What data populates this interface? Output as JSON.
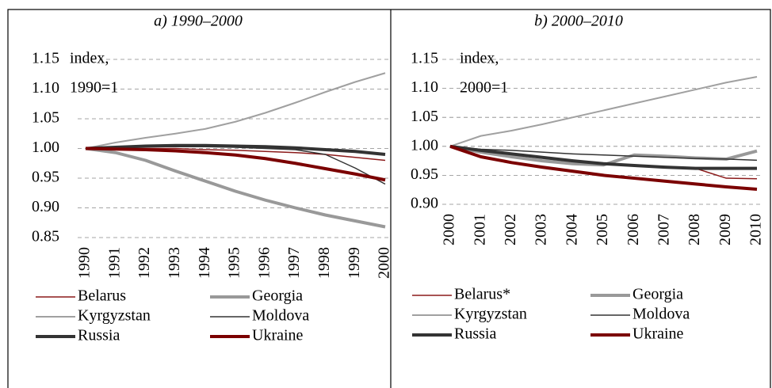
{
  "chart_data": [
    {
      "type": "line",
      "title": "a) 1990–2000",
      "annotation": [
        "index,",
        "1990=1"
      ],
      "categories": [
        "1990",
        "1991",
        "1992",
        "1993",
        "1994",
        "1995",
        "1996",
        "1997",
        "1998",
        "1999",
        "2000"
      ],
      "ylim": [
        0.85,
        1.15
      ],
      "yticks": [
        {
          "value": 0.85,
          "label": "0.85"
        },
        {
          "value": 0.9,
          "label": "0.90"
        },
        {
          "value": 0.95,
          "label": "0.95"
        },
        {
          "value": 1,
          "label": "1.00"
        },
        {
          "value": 1.05,
          "label": "1.05"
        },
        {
          "value": 1.1,
          "label": "1.10"
        },
        {
          "value": 1.15,
          "label": "1.15"
        }
      ],
      "grid": true,
      "series": [
        {
          "name": "Belarus",
          "color": "#8b1a1a",
          "linewidth": 1.5,
          "values": [
            1,
            1,
            1,
            1,
            0.998,
            0.997,
            0.995,
            0.993,
            0.99,
            0.985,
            0.98
          ]
        },
        {
          "name": "Georgia",
          "color": "#999999",
          "linewidth": 4,
          "values": [
            1,
            0.993,
            0.98,
            0.962,
            0.945,
            0.928,
            0.913,
            0.9,
            0.888,
            0.878,
            0.868
          ]
        },
        {
          "name": "Kyrgyzstan",
          "color": "#a0a0a0",
          "linewidth": 2,
          "values": [
            1,
            1.01,
            1.018,
            1.025,
            1.033,
            1.045,
            1.06,
            1.077,
            1.095,
            1.112,
            1.127
          ]
        },
        {
          "name": "Moldova",
          "color": "#333333",
          "linewidth": 1.5,
          "values": [
            1,
            1.002,
            1.003,
            1.003,
            1.003,
            1.002,
            1,
            0.998,
            0.99,
            0.967,
            0.94
          ]
        },
        {
          "name": "Russia",
          "color": "#333333",
          "linewidth": 4,
          "values": [
            1,
            1.002,
            1.004,
            1.005,
            1.005,
            1.004,
            1.003,
            1.001,
            0.998,
            0.995,
            0.99
          ]
        },
        {
          "name": "Ukraine",
          "color": "#7b0000",
          "linewidth": 4,
          "values": [
            1,
            0.999,
            0.998,
            0.996,
            0.993,
            0.989,
            0.983,
            0.975,
            0.966,
            0.957,
            0.947
          ]
        }
      ]
    },
    {
      "type": "line",
      "title": "b) 2000–2010",
      "annotation": [
        "index,",
        "2000=1"
      ],
      "categories": [
        "2000",
        "2001",
        "2002",
        "2003",
        "2004",
        "2005",
        "2006",
        "2007",
        "2008",
        "2009",
        "2010"
      ],
      "ylim": [
        0.9,
        1.15
      ],
      "yticks": [
        {
          "value": 0.9,
          "label": "0.90"
        },
        {
          "value": 0.95,
          "label": "0.95"
        },
        {
          "value": 1,
          "label": "1.00"
        },
        {
          "value": 1.05,
          "label": "1.05"
        },
        {
          "value": 1.1,
          "label": "1.10"
        },
        {
          "value": 1.15,
          "label": "1.15"
        }
      ],
      "grid": true,
      "series": [
        {
          "name": "Belarus*",
          "color": "#8b1a1a",
          "linewidth": 1.5,
          "values": [
            1,
            0.99,
            0.985,
            0.98,
            0.975,
            0.97,
            0.967,
            0.965,
            0.962,
            0.945,
            0.944
          ]
        },
        {
          "name": "Georgia",
          "color": "#999999",
          "linewidth": 4,
          "values": [
            1,
            0.99,
            0.982,
            0.975,
            0.97,
            0.968,
            0.985,
            0.983,
            0.98,
            0.978,
            0.992
          ]
        },
        {
          "name": "Kyrgyzstan",
          "color": "#a0a0a0",
          "linewidth": 2,
          "values": [
            1,
            1.018,
            1.027,
            1.038,
            1.05,
            1.062,
            1.074,
            1.086,
            1.098,
            1.11,
            1.12
          ]
        },
        {
          "name": "Moldova",
          "color": "#333333",
          "linewidth": 1.5,
          "values": [
            1,
            0.995,
            0.993,
            0.99,
            0.987,
            0.985,
            0.983,
            0.981,
            0.979,
            0.978,
            0.976
          ]
        },
        {
          "name": "Russia",
          "color": "#333333",
          "linewidth": 4,
          "values": [
            1,
            0.993,
            0.987,
            0.981,
            0.975,
            0.97,
            0.967,
            0.964,
            0.962,
            0.962,
            0.962
          ]
        },
        {
          "name": "Ukraine",
          "color": "#7b0000",
          "linewidth": 4,
          "values": [
            1,
            0.982,
            0.972,
            0.964,
            0.957,
            0.95,
            0.945,
            0.94,
            0.935,
            0.93,
            0.926
          ]
        }
      ]
    }
  ]
}
